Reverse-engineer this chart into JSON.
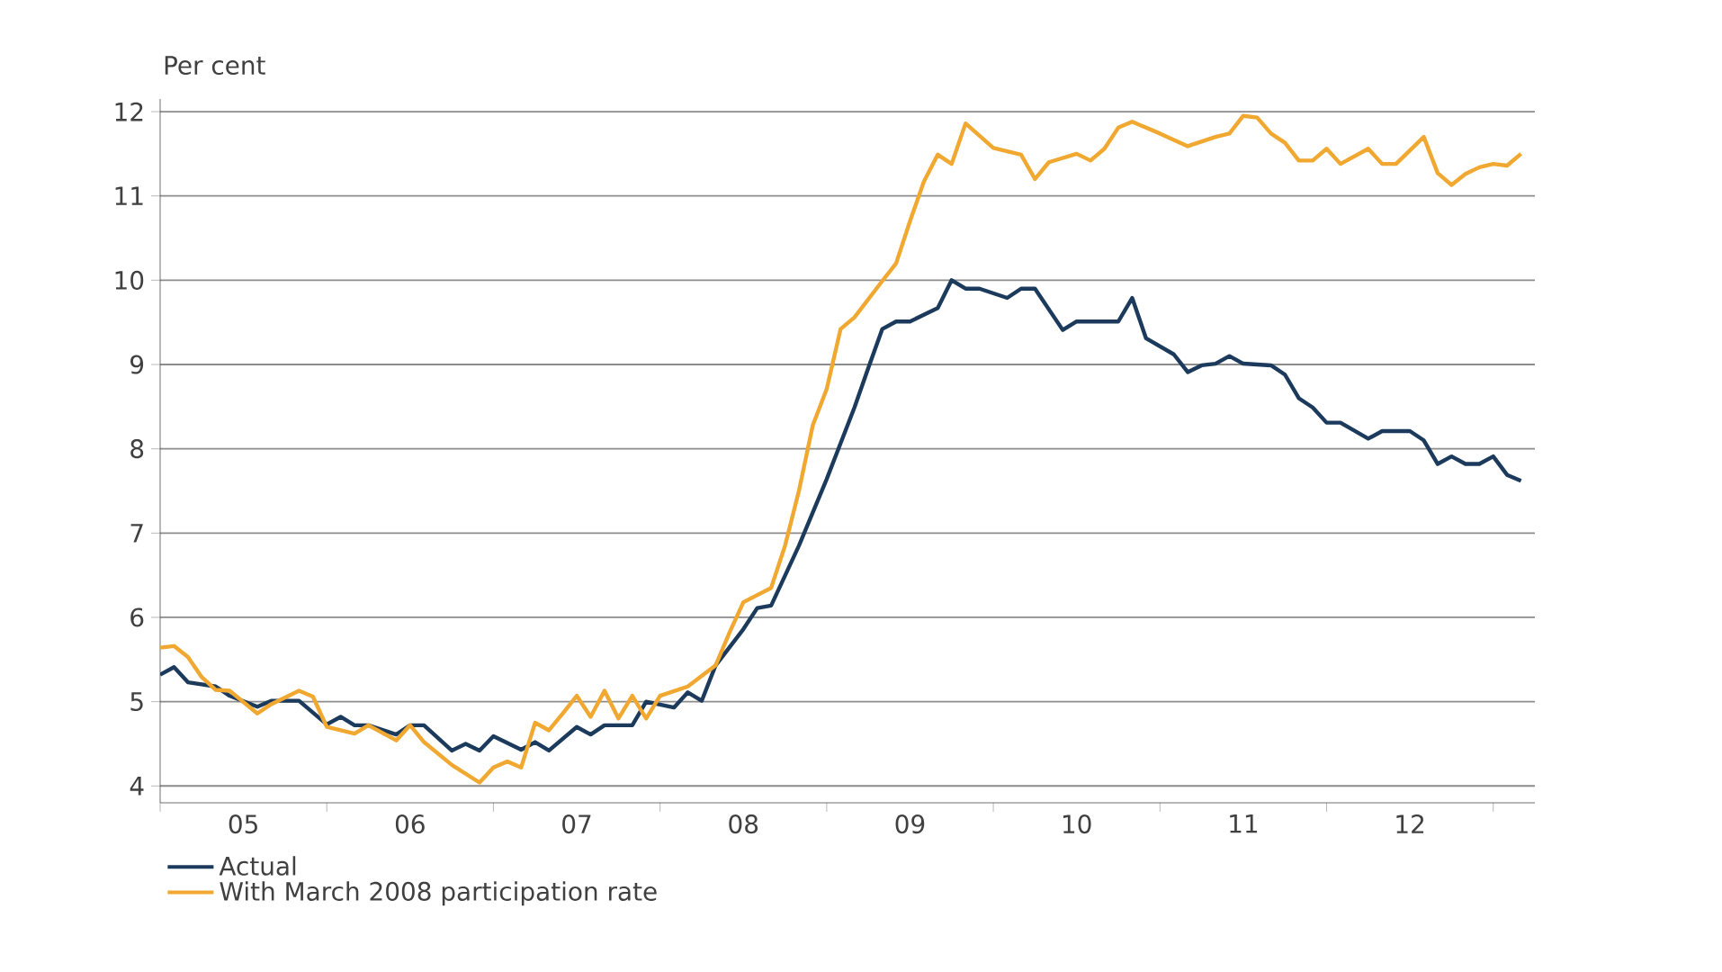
{
  "chart_data": {
    "type": "line",
    "ylabel": "Per cent",
    "xlim": [
      "2005-01",
      "2013-04"
    ],
    "ylim": [
      3.8,
      12.15
    ],
    "xticks": [
      {
        "value": "2005",
        "label": null
      },
      {
        "value": "2006",
        "label": null
      },
      {
        "value": "2007",
        "label": null
      },
      {
        "value": "2008",
        "label": null
      },
      {
        "value": "2009",
        "label": null
      },
      {
        "value": "2010",
        "label": null
      },
      {
        "value": "2011",
        "label": null
      },
      {
        "value": "2012",
        "label": null
      },
      {
        "value": "2013",
        "label": null
      },
      {
        "value": "2005-07",
        "label": "05"
      },
      {
        "value": "2006-07",
        "label": "06"
      },
      {
        "value": "2007-07",
        "label": "07"
      },
      {
        "value": "2008-07",
        "label": "08"
      },
      {
        "value": "2009-07",
        "label": "09"
      },
      {
        "value": "2010-07",
        "label": "10"
      },
      {
        "value": "2011-07",
        "label": "11"
      },
      {
        "value": "2012-07",
        "label": "12"
      }
    ],
    "yticks": [
      4,
      5,
      6,
      7,
      8,
      9,
      10,
      11,
      12
    ],
    "grid": "y",
    "legend": "bottom",
    "series": [
      {
        "name": "Actual",
        "color": "#1b3a5c",
        "x": [
          "2005-01",
          "2005-02",
          "2005-03",
          "2005-05",
          "2005-06",
          "2005-08",
          "2005-09",
          "2005-11",
          "2006-01",
          "2006-02",
          "2006-03",
          "2006-04",
          "2006-06",
          "2006-07",
          "2006-08",
          "2006-10",
          "2006-11",
          "2006-12",
          "2007-01",
          "2007-03",
          "2007-04",
          "2007-05",
          "2007-07",
          "2007-08",
          "2007-09",
          "2007-11",
          "2007-12",
          "2008-02",
          "2008-03",
          "2008-04",
          "2008-05",
          "2008-07",
          "2008-08",
          "2008-09",
          "2008-11",
          "2009-01",
          "2009-03",
          "2009-04",
          "2009-05",
          "2009-06",
          "2009-07",
          "2009-09",
          "2009-10",
          "2009-11",
          "2009-12",
          "2010-02",
          "2010-03",
          "2010-04",
          "2010-06",
          "2010-07",
          "2010-10",
          "2010-11",
          "2010-12",
          "2011-02",
          "2011-03",
          "2011-04",
          "2011-05",
          "2011-06",
          "2011-07",
          "2011-09",
          "2011-10",
          "2011-11",
          "2011-12",
          "2012-01",
          "2012-02",
          "2012-04",
          "2012-05",
          "2012-07",
          "2012-08",
          "2012-09",
          "2012-10",
          "2012-11",
          "2012-12",
          "2013-01",
          "2013-02",
          "2013-03"
        ],
        "values": [
          5.32,
          5.41,
          5.23,
          5.18,
          5.07,
          4.94,
          5.01,
          5.01,
          4.73,
          4.82,
          4.72,
          4.72,
          4.61,
          4.72,
          4.72,
          4.42,
          4.5,
          4.42,
          4.59,
          4.43,
          4.52,
          4.42,
          4.7,
          4.61,
          4.72,
          4.72,
          5.0,
          4.93,
          5.11,
          5.01,
          5.43,
          5.86,
          6.11,
          6.14,
          6.85,
          7.64,
          8.49,
          8.96,
          9.42,
          9.51,
          9.51,
          9.67,
          10.0,
          9.9,
          9.9,
          9.79,
          9.9,
          9.9,
          9.41,
          9.51,
          9.51,
          9.79,
          9.31,
          9.12,
          8.91,
          8.99,
          9.01,
          9.1,
          9.01,
          8.99,
          8.88,
          8.6,
          8.49,
          8.31,
          8.31,
          8.12,
          8.21,
          8.21,
          8.1,
          7.82,
          7.91,
          7.82,
          7.82,
          7.91,
          7.69,
          7.62
        ]
      },
      {
        "name": "With March 2008 participation rate",
        "color": "#f0a830",
        "x": [
          "2005-01",
          "2005-02",
          "2005-03",
          "2005-04",
          "2005-05",
          "2005-06",
          "2005-08",
          "2005-09",
          "2005-11",
          "2005-12",
          "2006-01",
          "2006-03",
          "2006-04",
          "2006-06",
          "2006-07",
          "2006-08",
          "2006-10",
          "2006-12",
          "2007-01",
          "2007-02",
          "2007-03",
          "2007-04",
          "2007-05",
          "2007-06",
          "2007-07",
          "2007-08",
          "2007-09",
          "2007-10",
          "2007-11",
          "2007-12",
          "2008-01",
          "2008-03",
          "2008-05",
          "2008-06",
          "2008-07",
          "2008-09",
          "2008-10",
          "2008-11",
          "2008-12",
          "2009-01",
          "2009-02",
          "2009-03",
          "2009-05",
          "2009-06",
          "2009-07",
          "2009-08",
          "2009-09",
          "2009-10",
          "2009-11",
          "2010-01",
          "2010-03",
          "2010-04",
          "2010-05",
          "2010-07",
          "2010-08",
          "2010-09",
          "2010-10",
          "2010-11",
          "2011-01",
          "2011-03",
          "2011-05",
          "2011-06",
          "2011-07",
          "2011-08",
          "2011-09",
          "2011-10",
          "2011-11",
          "2011-12",
          "2012-01",
          "2012-02",
          "2012-04",
          "2012-05",
          "2012-06",
          "2012-08",
          "2012-09",
          "2012-10",
          "2012-11",
          "2012-12",
          "2013-01",
          "2013-02",
          "2013-03"
        ],
        "values": [
          5.64,
          5.66,
          5.53,
          5.29,
          5.14,
          5.13,
          4.86,
          4.97,
          5.13,
          5.06,
          4.7,
          4.62,
          4.72,
          4.54,
          4.72,
          4.52,
          4.25,
          4.04,
          4.22,
          4.29,
          4.22,
          4.75,
          4.66,
          4.86,
          5.07,
          4.82,
          5.13,
          4.8,
          5.07,
          4.8,
          5.07,
          5.18,
          5.43,
          5.82,
          6.18,
          6.35,
          6.85,
          7.5,
          8.28,
          8.71,
          9.42,
          9.56,
          9.99,
          10.2,
          10.7,
          11.17,
          11.49,
          11.38,
          11.86,
          11.57,
          11.49,
          11.2,
          11.4,
          11.5,
          11.42,
          11.56,
          11.81,
          11.88,
          11.74,
          11.59,
          11.7,
          11.74,
          11.95,
          11.93,
          11.74,
          11.63,
          11.42,
          11.42,
          11.56,
          11.38,
          11.56,
          11.38,
          11.38,
          11.7,
          11.27,
          11.13,
          11.26,
          11.34,
          11.38,
          11.36,
          11.5
        ]
      }
    ]
  }
}
